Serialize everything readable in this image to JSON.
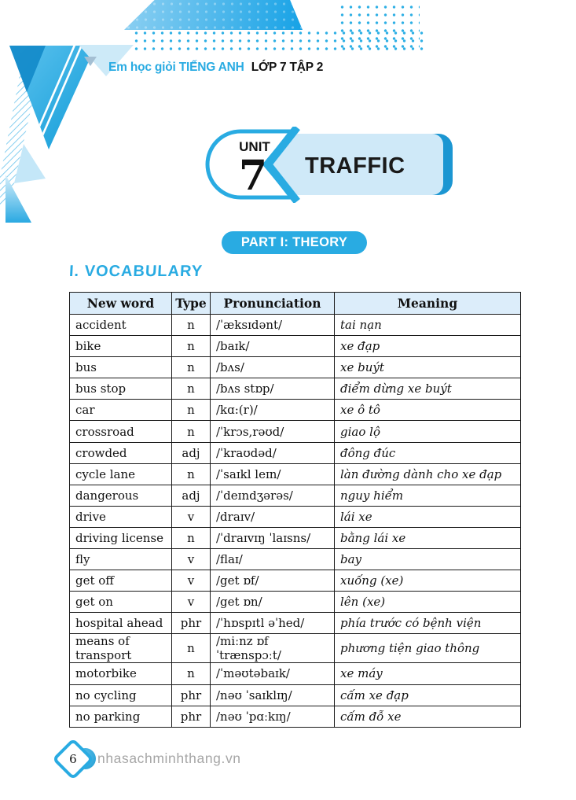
{
  "brand": {
    "series": "Em học giỏi",
    "subject": "TIẾNG ANH",
    "grade": "LỚP 7 TẬP 2"
  },
  "unit": {
    "label": "UNIT",
    "number": "7",
    "title": "TRAFFIC"
  },
  "part_banner": "PART I: THEORY",
  "section_heading": "I. VOCABULARY",
  "vocabulary_table": {
    "headers": [
      "New word",
      "Type",
      "Pronunciation",
      "Meaning"
    ],
    "rows": [
      [
        "accident",
        "n",
        "/ˈæksɪdənt/",
        "tai nạn"
      ],
      [
        "bike",
        "n",
        "/baɪk/",
        "xe đạp"
      ],
      [
        "bus",
        "n",
        "/bʌs/",
        "xe buýt"
      ],
      [
        "bus stop",
        "n",
        "/bʌs stɒp/",
        "điểm dừng xe buýt"
      ],
      [
        "car",
        "n",
        "/kɑ:(r)/",
        "xe ô tô"
      ],
      [
        "crossroad",
        "n",
        "/ˈkrɔs,rəʊd/",
        "giao lộ"
      ],
      [
        "crowded",
        "adj",
        "/ˈkraʊdəd/",
        "đông đúc"
      ],
      [
        "cycle lane",
        "n",
        "/ˈsaɪkl leɪn/",
        "làn đường dành cho xe đạp"
      ],
      [
        "dangerous",
        "adj",
        "/ˈdeɪndʒərəs/",
        "nguy hiểm"
      ],
      [
        "drive",
        "v",
        "/draɪv/",
        "lái xe"
      ],
      [
        "driving license",
        "n",
        "/ˈdraɪvɪŋ ˈlaɪsns/",
        "bằng lái xe"
      ],
      [
        "fly",
        "v",
        "/flaɪ/",
        "bay"
      ],
      [
        "get off",
        "v",
        "/get ɒf/",
        "xuống (xe)"
      ],
      [
        "get on",
        "v",
        "/get ɒn/",
        "lên (xe)"
      ],
      [
        "hospital ahead",
        "phr",
        "/ˈhɒspɪtl əˈhed/",
        "phía trước có bệnh viện"
      ],
      [
        "means of transport",
        "n",
        "/miːnz ɒf ˈtrænspɔːt/",
        "phương tiện giao thông"
      ],
      [
        "motorbike",
        "n",
        "/ˈməʊtəbaɪk/",
        "xe máy"
      ],
      [
        "no cycling",
        "phr",
        "/nəʊ ˈsaɪklɪŋ/",
        "cấm xe đạp"
      ],
      [
        "no parking",
        "phr",
        "/nəʊ ˈpɑːkɪŋ/",
        "cấm đỗ xe"
      ]
    ]
  },
  "footer": {
    "page_number": "6",
    "website": "nhasachminhthang.vn"
  },
  "colors": {
    "accent_cyan": "#29abe2",
    "banner_light_blue": "#cfe9f8",
    "banner_cap_blue": "#1b96d2",
    "table_header_bg": "#dcedfa",
    "dark_text": "#1a1a1a",
    "footer_gray": "#a6a6a6"
  }
}
